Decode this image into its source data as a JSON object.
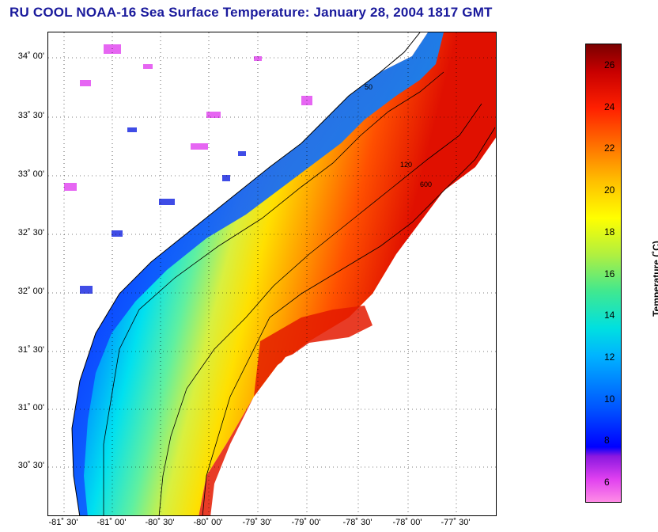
{
  "title": "RU COOL  NOAA-16  Sea Surface Temperature:  January 28, 2004 1817 GMT",
  "map": {
    "lat_labels": [
      "34˚ 00'",
      "33˚ 30'",
      "33˚ 00'",
      "32˚ 30'",
      "32˚ 00'",
      "31˚ 30'",
      "31˚ 00'",
      "30˚ 30'"
    ],
    "lon_labels": [
      "-81˚ 30'",
      "-81˚ 00'",
      "-80˚ 30'",
      "-80˚ 00'",
      "-79˚ 30'",
      "-79˚ 00'",
      "-78˚ 30'",
      "-78˚ 00'",
      "-77˚ 30'"
    ],
    "contour_labels": [
      "50",
      "120",
      "600"
    ]
  },
  "colorbar": {
    "label": "Temperature (˚C)",
    "ticks": [
      "26",
      "24",
      "22",
      "20",
      "18",
      "16",
      "14",
      "12",
      "10",
      "8",
      "6"
    ],
    "range": [
      5,
      27
    ],
    "colors": {
      "cold": "#ff8ce6",
      "cool": "#0000ff",
      "mid": "#ffff00",
      "warm": "#ff2000",
      "hot": "#7a0000"
    }
  }
}
